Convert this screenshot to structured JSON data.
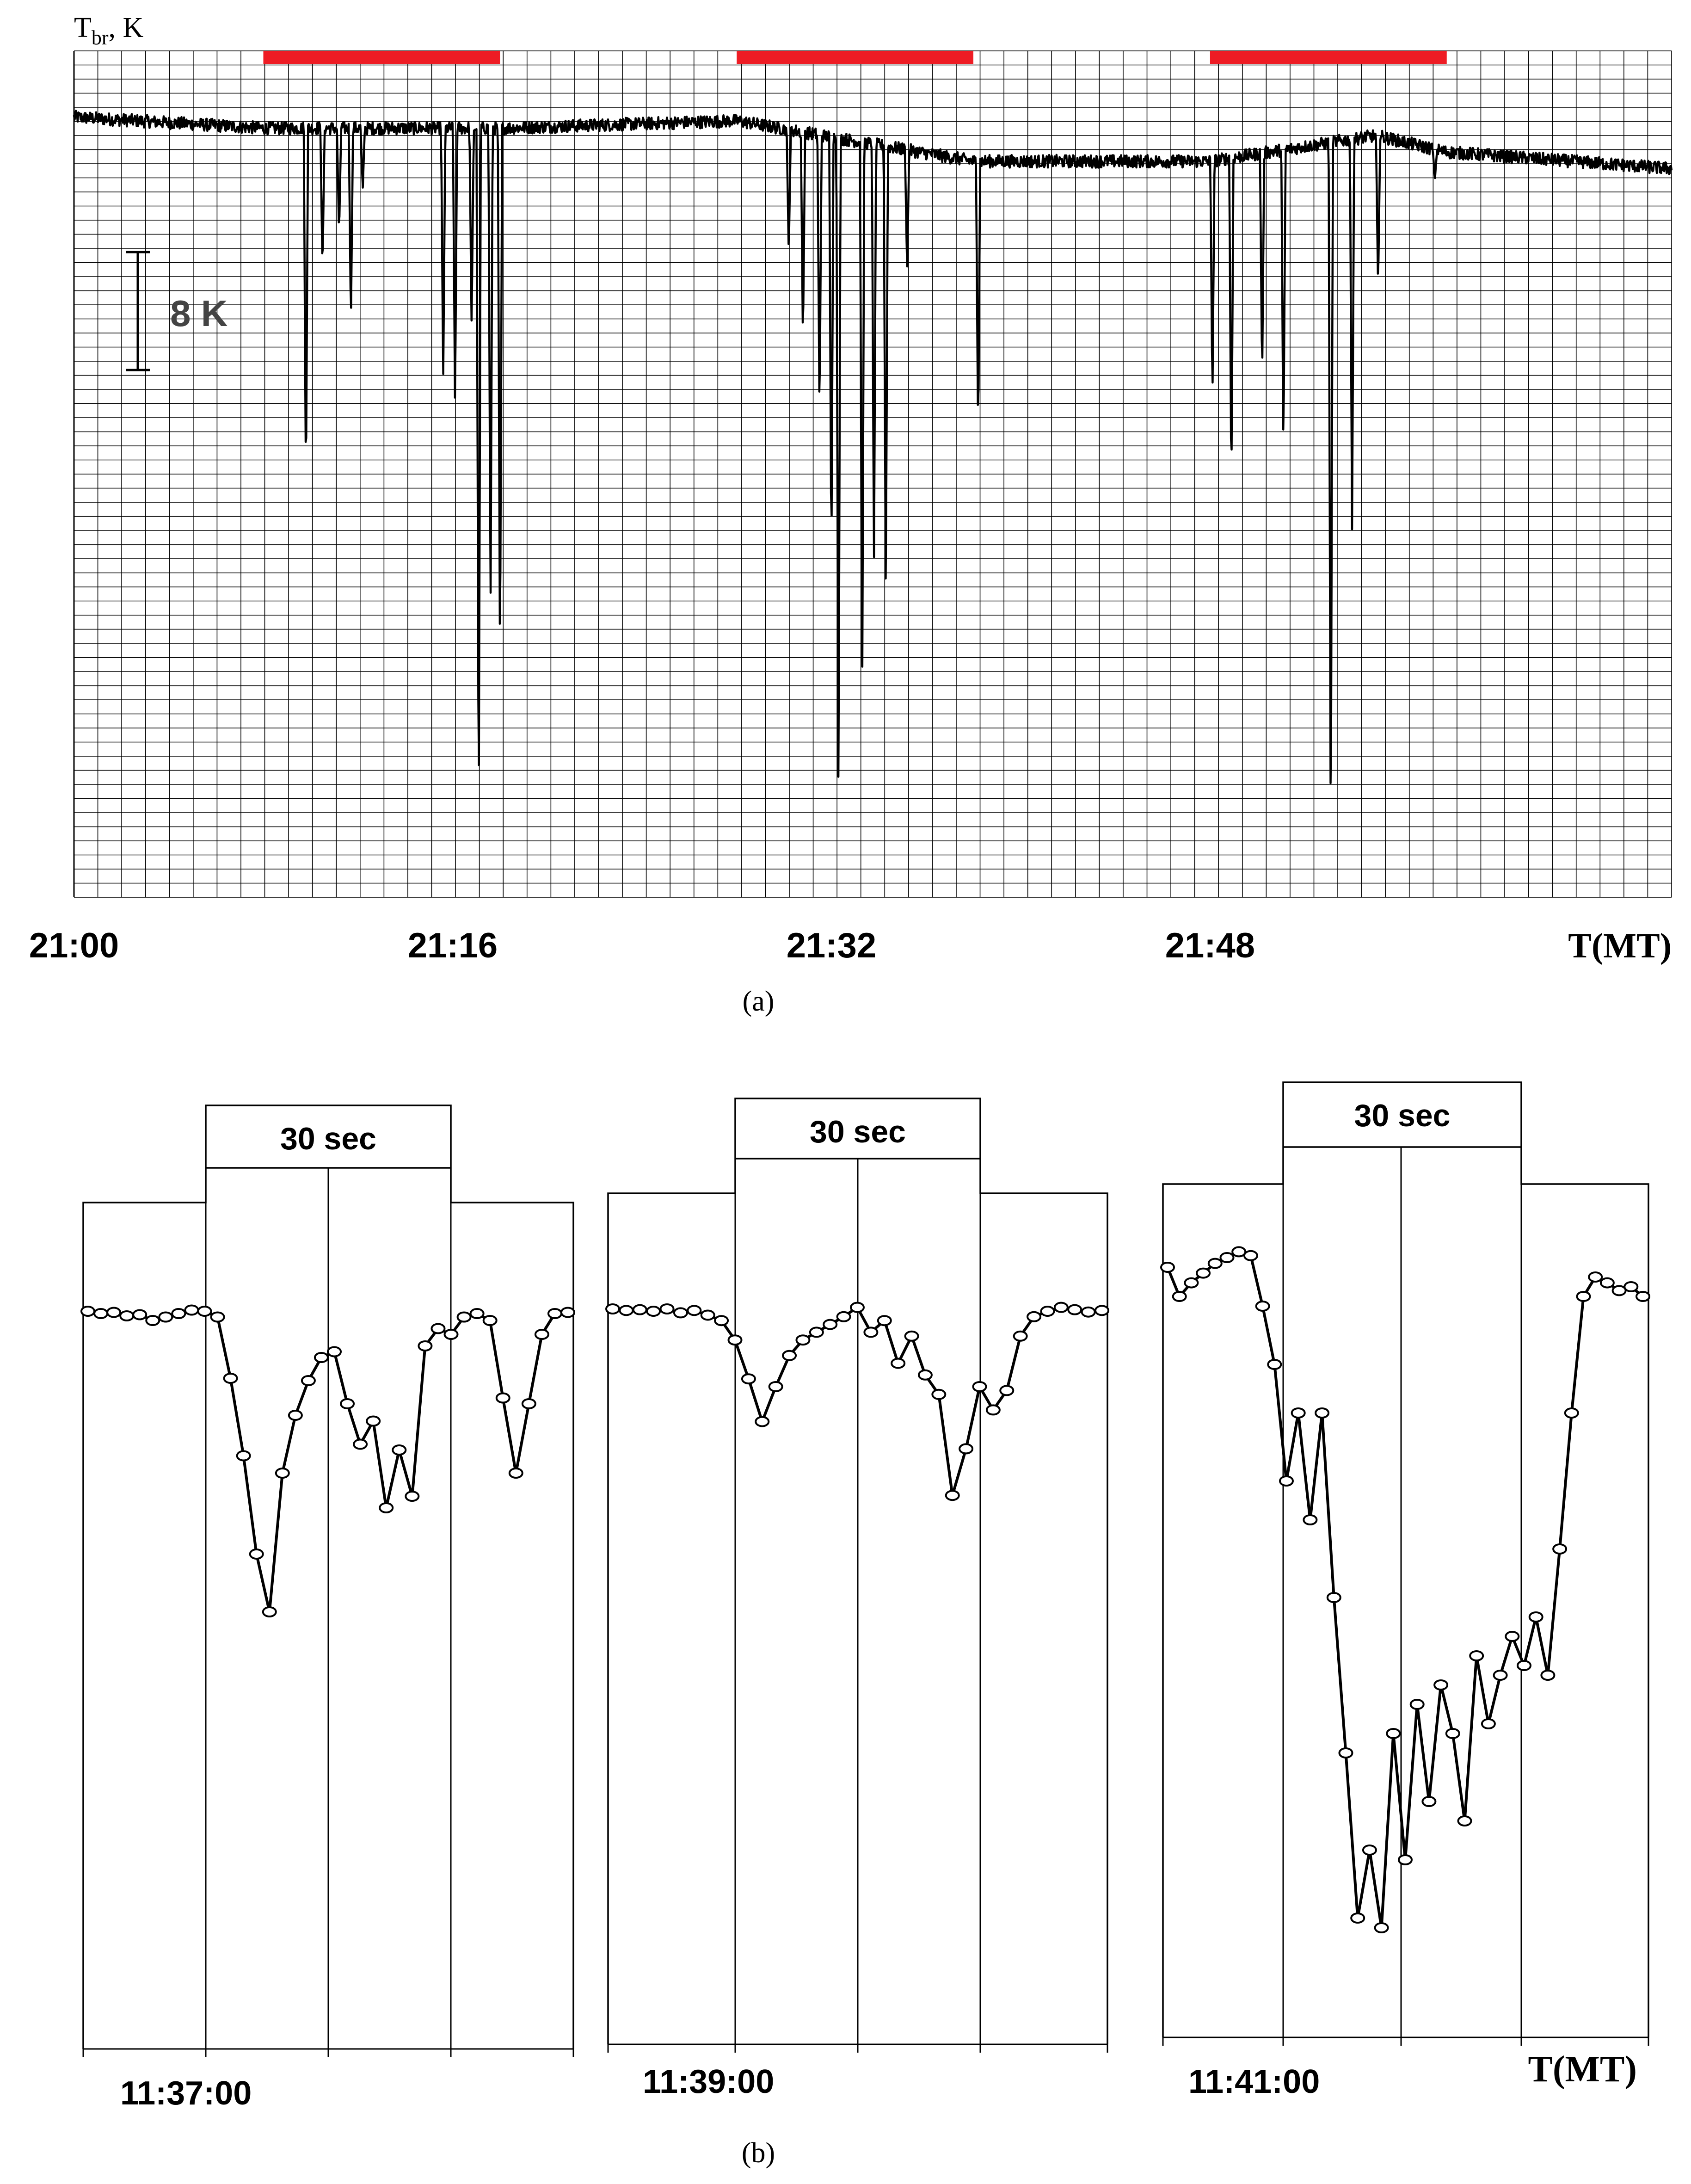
{
  "chart_data": [
    {
      "type": "line",
      "panel_label": "(a)",
      "y_axis_title_main": "T",
      "y_axis_title_sub": "br",
      "y_axis_title_rest": ", K",
      "x_axis_title": "T(MT)",
      "xlim_minutes": [
        0,
        67.5
      ],
      "x_tick_labels": [
        {
          "label": "21:00",
          "minute": 0
        },
        {
          "label": "21:16",
          "minute": 16
        },
        {
          "label": "21:32",
          "minute": 32
        },
        {
          "label": "21:48",
          "minute": 48
        }
      ],
      "y_reference": "baseline = 0 K, downward dips in K",
      "ylim_k": [
        -42,
        4
      ],
      "scale_bar_label": "8 K",
      "scale_bar_k": 8,
      "highlight_intervals_minutes": [
        [
          8,
          18
        ],
        [
          28,
          38
        ],
        [
          48,
          58
        ]
      ],
      "highlight_color": "#ee1c24",
      "line_color": "#000000",
      "baseline_k": [
        {
          "minute": 0,
          "value": 0.4
        },
        {
          "minute": 8,
          "value": -0.2
        },
        {
          "minute": 18,
          "value": -0.2
        },
        {
          "minute": 28,
          "value": 0.2
        },
        {
          "minute": 38,
          "value": -2.0
        },
        {
          "minute": 48,
          "value": -2.0
        },
        {
          "minute": 55,
          "value": -0.6
        },
        {
          "minute": 58,
          "value": -1.5
        },
        {
          "minute": 67.5,
          "value": -2.4
        }
      ],
      "dips": [
        {
          "minute": 9.8,
          "depth_k": -20.0
        },
        {
          "minute": 10.5,
          "depth_k": -8.0
        },
        {
          "minute": 11.2,
          "depth_k": -6.0
        },
        {
          "minute": 11.7,
          "depth_k": -11.0
        },
        {
          "minute": 12.2,
          "depth_k": -3.5
        },
        {
          "minute": 15.6,
          "depth_k": -14.0
        },
        {
          "minute": 16.1,
          "depth_k": -15.5
        },
        {
          "minute": 16.8,
          "depth_k": -11.0
        },
        {
          "minute": 17.1,
          "depth_k": -38.5
        },
        {
          "minute": 17.6,
          "depth_k": -26.0
        },
        {
          "minute": 18.0,
          "depth_k": -30.0
        },
        {
          "minute": 30.2,
          "depth_k": -7.0
        },
        {
          "minute": 30.8,
          "depth_k": -12.0
        },
        {
          "minute": 31.5,
          "depth_k": -16.0
        },
        {
          "minute": 32.0,
          "depth_k": -24.0
        },
        {
          "minute": 32.3,
          "depth_k": -37.0
        },
        {
          "minute": 33.3,
          "depth_k": -32.5
        },
        {
          "minute": 33.8,
          "depth_k": -24.0
        },
        {
          "minute": 34.3,
          "depth_k": -26.0
        },
        {
          "minute": 35.2,
          "depth_k": -8.0
        },
        {
          "minute": 38.2,
          "depth_k": -17.0
        },
        {
          "minute": 48.1,
          "depth_k": -15.0
        },
        {
          "minute": 48.9,
          "depth_k": -20.0
        },
        {
          "minute": 50.2,
          "depth_k": -14.0
        },
        {
          "minute": 51.1,
          "depth_k": -18.0
        },
        {
          "minute": 53.1,
          "depth_k": -39.5
        },
        {
          "minute": 54.0,
          "depth_k": -22.0
        },
        {
          "minute": 55.1,
          "depth_k": -9.0
        },
        {
          "minute": 57.5,
          "depth_k": -3.0
        }
      ]
    },
    {
      "type": "line",
      "panel_label": "(b)",
      "x_axis_title": "T(MT)",
      "window_label": "30 sec",
      "y_reference": "relative units, 0 = baseline, negative = dip",
      "subpanels": [
        {
          "name": "11:37:00",
          "start_label": "11:37:00",
          "points": [
            [
              0,
              0.0
            ],
            [
              1,
              -0.2
            ],
            [
              2,
              -0.1
            ],
            [
              3,
              -0.4
            ],
            [
              4,
              -0.3
            ],
            [
              5,
              -0.8
            ],
            [
              6,
              -0.5
            ],
            [
              7,
              -0.2
            ],
            [
              8,
              0.1
            ],
            [
              9,
              0.0
            ],
            [
              10,
              -0.5
            ],
            [
              11,
              -5.8
            ],
            [
              12,
              -12.5
            ],
            [
              13,
              -21.0
            ],
            [
              14,
              -26.0
            ],
            [
              15,
              -14.0
            ],
            [
              16,
              -9.0
            ],
            [
              17,
              -6.0
            ],
            [
              18,
              -4.0
            ],
            [
              19,
              -3.5
            ],
            [
              20,
              -8.0
            ],
            [
              21,
              -11.5
            ],
            [
              22,
              -9.5
            ],
            [
              23,
              -17.0
            ],
            [
              24,
              -12.0
            ],
            [
              25,
              -16.0
            ],
            [
              26,
              -3.0
            ],
            [
              27,
              -1.5
            ],
            [
              28,
              -2.0
            ],
            [
              29,
              -0.5
            ],
            [
              30,
              -0.2
            ],
            [
              31,
              -0.8
            ],
            [
              32,
              -7.5
            ],
            [
              33,
              -14.0
            ],
            [
              34,
              -8.0
            ],
            [
              35,
              -2.0
            ],
            [
              36,
              -0.2
            ],
            [
              37,
              -0.1
            ]
          ]
        },
        {
          "name": "11:39:00",
          "start_label": "11:39:00",
          "points": [
            [
              0,
              0.0
            ],
            [
              1,
              -0.2
            ],
            [
              2,
              -0.1
            ],
            [
              3,
              -0.3
            ],
            [
              4,
              0.0
            ],
            [
              5,
              -0.5
            ],
            [
              6,
              -0.2
            ],
            [
              7,
              -0.8
            ],
            [
              8,
              -1.5
            ],
            [
              9,
              -4.0
            ],
            [
              10,
              -9.0
            ],
            [
              11,
              -14.5
            ],
            [
              12,
              -10.0
            ],
            [
              13,
              -6.0
            ],
            [
              14,
              -4.0
            ],
            [
              15,
              -3.0
            ],
            [
              16,
              -2.0
            ],
            [
              17,
              -1.0
            ],
            [
              18,
              0.2
            ],
            [
              19,
              -3.0
            ],
            [
              20,
              -1.5
            ],
            [
              21,
              -7.0
            ],
            [
              22,
              -3.5
            ],
            [
              23,
              -8.5
            ],
            [
              24,
              -11.0
            ],
            [
              25,
              -24.0
            ],
            [
              26,
              -18.0
            ],
            [
              27,
              -10.0
            ],
            [
              28,
              -13.0
            ],
            [
              29,
              -10.5
            ],
            [
              30,
              -3.5
            ],
            [
              31,
              -1.0
            ],
            [
              32,
              -0.3
            ],
            [
              33,
              0.2
            ],
            [
              34,
              -0.1
            ],
            [
              35,
              -0.4
            ],
            [
              36,
              -0.2
            ]
          ]
        },
        {
          "name": "11:41:00",
          "start_label": "11:41:00",
          "points": [
            [
              0,
              0.0
            ],
            [
              1,
              -1.5
            ],
            [
              2,
              -0.8
            ],
            [
              3,
              -0.3
            ],
            [
              4,
              0.2
            ],
            [
              5,
              0.5
            ],
            [
              6,
              0.8
            ],
            [
              7,
              0.6
            ],
            [
              8,
              -2.0
            ],
            [
              9,
              -5.0
            ],
            [
              10,
              -11.0
            ],
            [
              11,
              -7.5
            ],
            [
              12,
              -13.0
            ],
            [
              13,
              -7.5
            ],
            [
              14,
              -17.0
            ],
            [
              15,
              -25.0
            ],
            [
              16,
              -33.5
            ],
            [
              17,
              -30.0
            ],
            [
              18,
              -34.0
            ],
            [
              19,
              -24.0
            ],
            [
              20,
              -30.5
            ],
            [
              21,
              -22.5
            ],
            [
              22,
              -27.5
            ],
            [
              23,
              -21.5
            ],
            [
              24,
              -24.0
            ],
            [
              25,
              -28.5
            ],
            [
              26,
              -20.0
            ],
            [
              27,
              -23.5
            ],
            [
              28,
              -21.0
            ],
            [
              29,
              -19.0
            ],
            [
              30,
              -20.5
            ],
            [
              31,
              -18.0
            ],
            [
              32,
              -21.0
            ],
            [
              33,
              -14.5
            ],
            [
              34,
              -7.5
            ],
            [
              35,
              -1.5
            ],
            [
              36,
              -0.5
            ],
            [
              37,
              -0.8
            ],
            [
              38,
              -1.2
            ],
            [
              39,
              -1.0
            ],
            [
              40,
              -1.5
            ]
          ]
        }
      ]
    }
  ]
}
